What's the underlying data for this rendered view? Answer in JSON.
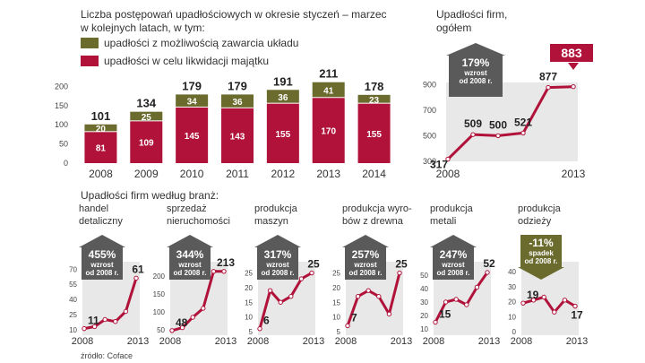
{
  "colors": {
    "olive": "#6b6b2e",
    "crimson": "#b0123a",
    "grey_badge": "#5a5a5a",
    "panel_bg": "#e8e8e8",
    "text": "#333333"
  },
  "source": "źródło: Coface",
  "chart_data": [
    {
      "type": "bar",
      "title_lines": [
        "Liczba postępowań upadłościowych w okresie styczeń – marzec",
        "w kolejnych latach, w tym:"
      ],
      "categories": [
        "2008",
        "2009",
        "2010",
        "2011",
        "2012",
        "2013",
        "2014"
      ],
      "totals": [
        101,
        134,
        179,
        179,
        191,
        211,
        178
      ],
      "series": [
        {
          "name": "upadłości w celu likwidacji majątku",
          "values": [
            81,
            109,
            145,
            143,
            155,
            170,
            155
          ],
          "color": "#b0123a"
        },
        {
          "name": "upadłości z możliwością zawarcia układu",
          "values": [
            20,
            25,
            34,
            36,
            36,
            41,
            23
          ],
          "color": "#6b6b2e"
        }
      ],
      "yticks": [
        0,
        50,
        100,
        150,
        200
      ],
      "ylim": [
        0,
        215
      ]
    },
    {
      "type": "line",
      "title_lines": [
        "Upadłości firm,",
        "ogółem"
      ],
      "x_labels": [
        "2008",
        "2013"
      ],
      "values": [
        317,
        509,
        500,
        521,
        877,
        883
      ],
      "yticks": [
        300,
        500,
        700,
        900
      ],
      "ylim": [
        300,
        930
      ],
      "badge": {
        "pct": "179%",
        "word": "wzrost",
        "since": "od 2008 r."
      },
      "highlight": "883"
    },
    {
      "type": "line",
      "section_title": "Upadłości firm według branż:",
      "panels": [
        {
          "title_lines": [
            "handel",
            "detaliczny"
          ],
          "values": [
            11,
            13,
            20,
            18,
            28,
            61
          ],
          "yticks": [
            10,
            25,
            40,
            55,
            70
          ],
          "ylim": [
            8,
            72
          ],
          "badge": {
            "pct": "455%",
            "word": "wzrost",
            "since": "od 2008 r."
          },
          "first": "11",
          "last": "61",
          "x_labels": [
            "2008",
            "2013"
          ]
        },
        {
          "title_lines": [
            "sprzedaż",
            "nieruchomości"
          ],
          "values": [
            48,
            56,
            85,
            110,
            213,
            213
          ],
          "yticks": [
            50,
            100,
            150,
            200
          ],
          "ylim": [
            45,
            225
          ],
          "badge": {
            "pct": "344%",
            "word": "wzrost",
            "since": "od 2008 r."
          },
          "first": "48",
          "last": "213",
          "x_labels": [
            "2008",
            "2013"
          ]
        },
        {
          "title_lines": [
            "produkcja",
            "maszyn"
          ],
          "values": [
            6,
            19,
            15,
            17,
            23,
            25
          ],
          "yticks": [
            5,
            10,
            15,
            20,
            25
          ],
          "ylim": [
            5,
            27
          ],
          "badge": {
            "pct": "317%",
            "word": "wzrost",
            "since": "od 2008 r."
          },
          "first": "6",
          "last": "25",
          "x_labels": [
            "2008",
            "2013"
          ]
        },
        {
          "title_lines": [
            "produkcja wyro-",
            "bów z drewna"
          ],
          "values": [
            7,
            17,
            19,
            17,
            11,
            25
          ],
          "yticks": [
            5,
            10,
            15,
            20,
            25
          ],
          "ylim": [
            5,
            27
          ],
          "badge": {
            "pct": "257%",
            "word": "wzrost",
            "since": "od 2008 r."
          },
          "first": "7",
          "last": "25",
          "x_labels": [
            "2008",
            "2013"
          ]
        },
        {
          "title_lines": [
            "produkcja",
            "metali"
          ],
          "values": [
            15,
            30,
            32,
            28,
            41,
            52
          ],
          "yticks": [
            10,
            20,
            30,
            40,
            50
          ],
          "ylim": [
            8,
            56
          ],
          "badge": {
            "pct": "247%",
            "word": "wzrost",
            "since": "od 2008 r."
          },
          "first": "15",
          "last": "52",
          "x_labels": [
            "2008",
            "2013"
          ]
        },
        {
          "title_lines": [
            "produkcja",
            "odzieży"
          ],
          "values": [
            19,
            21,
            23,
            13,
            21,
            17
          ],
          "yticks": [
            0,
            10,
            20,
            30,
            40
          ],
          "ylim": [
            0,
            43
          ],
          "badge": {
            "pct": "-11%",
            "word": "spadek",
            "since": "od 2008 r.",
            "down": true
          },
          "first": "19",
          "last": "17",
          "x_labels": [
            "2008",
            "2013"
          ]
        }
      ]
    }
  ]
}
